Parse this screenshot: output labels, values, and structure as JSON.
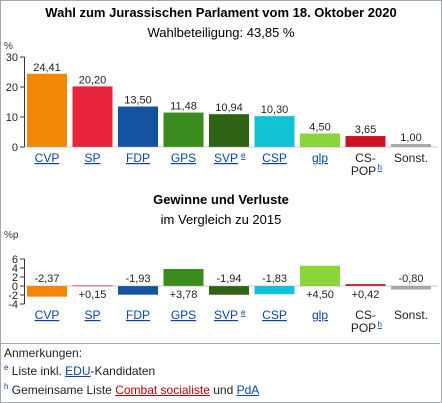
{
  "chart_data": [
    {
      "type": "bar",
      "title": "Wahl zum Jurassischen Parlament vom 18. Oktober 2020",
      "subtitle": "Wahlbeteiligung: 43,85 %",
      "ylabel": "%",
      "ylim": [
        0,
        30
      ],
      "yticks": [
        0,
        10,
        20,
        30
      ],
      "categories": [
        "CVP",
        "SP",
        "FDP",
        "GPS",
        "SVP",
        "CSP",
        "glp",
        "CS-POP",
        "Sonst."
      ],
      "category_footnotes": [
        "",
        "",
        "",
        "",
        "e",
        "",
        "",
        "h",
        ""
      ],
      "values": [
        24.41,
        20.2,
        13.5,
        11.48,
        10.94,
        10.3,
        4.5,
        3.65,
        1.0
      ],
      "value_labels": [
        "24,41",
        "20,20",
        "13,50",
        "11,48",
        "10,94",
        "10,30",
        "4,50",
        "3,65",
        "1,00"
      ],
      "colors": [
        "#f28705",
        "#e8243c",
        "#1552a1",
        "#3b8c1f",
        "#2e6313",
        "#10c3d4",
        "#8bd43a",
        "#cc1122",
        "#a9a9a9"
      ],
      "grid": false
    },
    {
      "type": "bar",
      "title": "Gewinne und Verluste",
      "subtitle": "im Vergleich zu 2015",
      "ylabel": "%p",
      "ylim": [
        -4,
        6
      ],
      "yticks": [
        -4,
        -2,
        0,
        2,
        4,
        6
      ],
      "categories": [
        "CVP",
        "SP",
        "FDP",
        "GPS",
        "SVP",
        "CSP",
        "glp",
        "CS-POP",
        "Sonst."
      ],
      "category_footnotes": [
        "",
        "",
        "",
        "",
        "e",
        "",
        "",
        "h",
        ""
      ],
      "values": [
        -2.37,
        0.15,
        -1.93,
        3.78,
        -1.94,
        -1.83,
        4.5,
        0.42,
        -0.8
      ],
      "value_labels": [
        "-2,37",
        "+0,15",
        "-1,93",
        "+3,78",
        "-1,94",
        "-1,83",
        "+4,50",
        "+0,42",
        "-0,80"
      ],
      "colors": [
        "#f28705",
        "#e8243c",
        "#1552a1",
        "#3b8c1f",
        "#2e6313",
        "#10c3d4",
        "#8bd43a",
        "#cc1122",
        "#a9a9a9"
      ],
      "grid": false
    }
  ],
  "category_links": [
    true,
    true,
    true,
    true,
    true,
    true,
    true,
    false,
    false
  ],
  "notes": {
    "heading": "Anmerkungen:",
    "items": [
      {
        "marker": "e",
        "parts": [
          {
            "text": "Liste inkl. ",
            "style": "plain"
          },
          {
            "text": "EDU",
            "style": "link"
          },
          {
            "text": "-Kandidaten",
            "style": "plain"
          }
        ]
      },
      {
        "marker": "h",
        "parts": [
          {
            "text": "Gemeinsame Liste ",
            "style": "plain"
          },
          {
            "text": "Combat socialiste",
            "style": "redlink"
          },
          {
            "text": " und ",
            "style": "plain"
          },
          {
            "text": "PdA",
            "style": "link"
          }
        ]
      }
    ]
  }
}
